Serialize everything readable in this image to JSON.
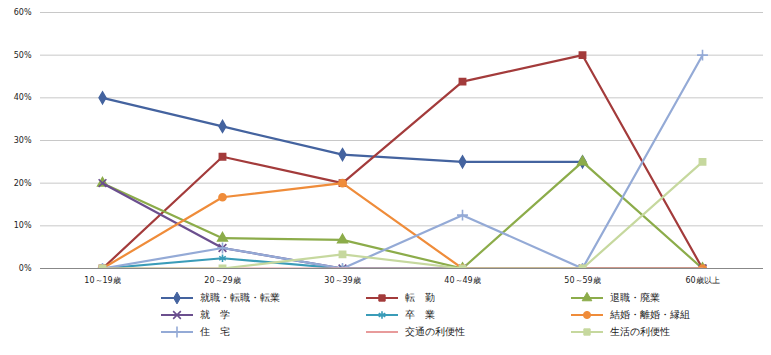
{
  "chart_data": {
    "type": "line",
    "categories": [
      "10～19歳",
      "20～29歳",
      "30～39歳",
      "40～49歳",
      "50～59歳",
      "60歳以上"
    ],
    "ylim": [
      0,
      60
    ],
    "yticks": [
      {
        "value": 0,
        "label": "0%"
      },
      {
        "value": 10,
        "label": "10%"
      },
      {
        "value": 20,
        "label": "20%"
      },
      {
        "value": 30,
        "label": "30%"
      },
      {
        "value": 40,
        "label": "40%"
      },
      {
        "value": 50,
        "label": "50%"
      },
      {
        "value": 60,
        "label": "60%"
      }
    ],
    "grid": true,
    "legend": "bottom",
    "series": [
      {
        "name": "就職・転職・転業",
        "color": "#44639f",
        "marker": "diamond",
        "values": [
          40,
          33.3,
          26.7,
          25,
          25,
          null
        ]
      },
      {
        "name": "転　勤",
        "color": "#a33b3b",
        "marker": "square",
        "values": [
          0,
          26.2,
          20,
          43.8,
          50,
          0
        ]
      },
      {
        "name": "退職・廃業",
        "color": "#8cac4a",
        "marker": "triangle",
        "values": [
          20,
          7.1,
          6.7,
          0,
          25,
          0
        ]
      },
      {
        "name": "就　学",
        "color": "#6b4f8e",
        "marker": "times",
        "values": [
          20,
          4.8,
          0,
          0,
          0,
          0
        ]
      },
      {
        "name": "卒　業",
        "color": "#3a9cb8",
        "marker": "asterisk",
        "values": [
          0,
          2.4,
          0,
          0,
          0,
          0
        ]
      },
      {
        "name": "結婚・離婚・縁組",
        "color": "#ef8c3a",
        "marker": "circle",
        "values": [
          0,
          16.7,
          20,
          0,
          0,
          0
        ]
      },
      {
        "name": "住　宅",
        "color": "#94aad6",
        "marker": "plus",
        "values": [
          0,
          4.8,
          0,
          12.5,
          0,
          50
        ]
      },
      {
        "name": "交通の利便性",
        "color": "#e89b9b",
        "marker": "none",
        "values": [
          0,
          0,
          0,
          0,
          0,
          0
        ]
      },
      {
        "name": "生活の利便性",
        "color": "#c6d89e",
        "marker": "square",
        "values": [
          0,
          0,
          3.3,
          0,
          0,
          25
        ]
      }
    ]
  }
}
